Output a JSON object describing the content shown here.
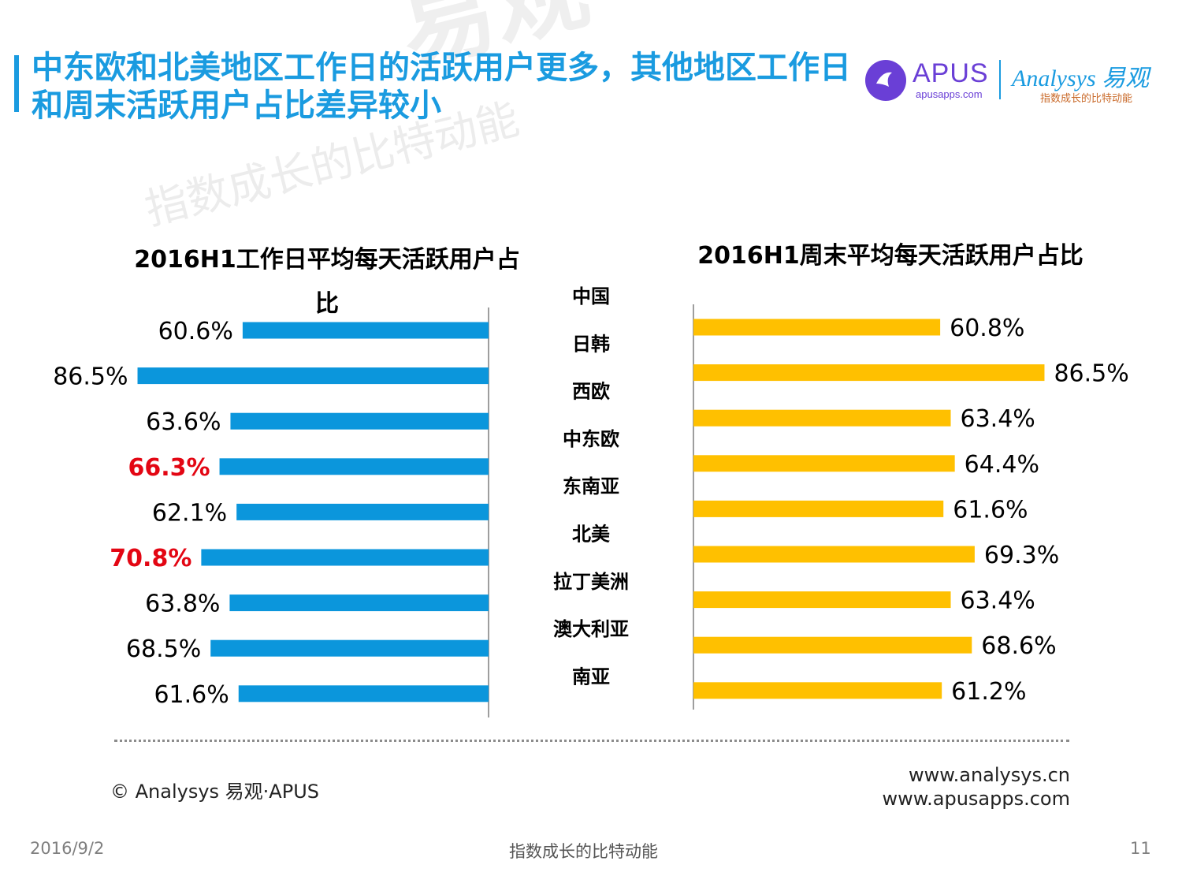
{
  "title": "中东欧和北美地区工作日的活跃用户更多，其他地区工作日和周末活跃用户占比差异较小",
  "logo": {
    "apus_name": "APUS",
    "apus_url": "apusapps.com",
    "analysys_name": "Analysys 易观",
    "analysys_slogan": "指数成长的比特动能"
  },
  "watermark": {
    "big": "易观",
    "small": "指数成长的比特动能"
  },
  "chart_data": [
    {
      "type": "bar",
      "orientation": "horizontal",
      "title": "2016H1工作日平均每天活跃用户占比",
      "categories": [
        "中国",
        "日韩",
        "西欧",
        "中东欧",
        "东南亚",
        "北美",
        "拉丁美洲",
        "澳大利亚",
        "南亚"
      ],
      "values": [
        60.6,
        86.5,
        63.6,
        66.3,
        62.1,
        70.8,
        63.8,
        68.5,
        61.6
      ],
      "labels": [
        "60.6%",
        "86.5%",
        "63.6%",
        "66.3%",
        "62.1%",
        "70.8%",
        "63.8%",
        "68.5%",
        "61.6%"
      ],
      "highlighted": [
        false,
        false,
        false,
        true,
        false,
        true,
        false,
        false,
        false
      ],
      "color": "#0b96dc",
      "highlight_color": "#e30613",
      "xlim": [
        0,
        100
      ],
      "direction": "right-to-left"
    },
    {
      "type": "bar",
      "orientation": "horizontal",
      "title": "2016H1周末平均每天活跃用户占比",
      "categories": [
        "中国",
        "日韩",
        "西欧",
        "中东欧",
        "东南亚",
        "北美",
        "拉丁美洲",
        "澳大利亚",
        "南亚"
      ],
      "values": [
        60.8,
        86.5,
        63.4,
        64.4,
        61.6,
        69.3,
        63.4,
        68.6,
        61.2
      ],
      "labels": [
        "60.8%",
        "86.5%",
        "63.4%",
        "64.4%",
        "61.6%",
        "69.3%",
        "63.4%",
        "68.6%",
        "61.2%"
      ],
      "color": "#ffc000",
      "xlim": [
        0,
        100
      ],
      "direction": "left-to-right"
    }
  ],
  "footer": {
    "copyright": "© Analysys 易观·APUS",
    "url1": "www.analysys.cn",
    "url2": "www.apusapps.com",
    "date": "2016/9/2",
    "slogan": "指数成长的比特动能",
    "page": "11"
  }
}
